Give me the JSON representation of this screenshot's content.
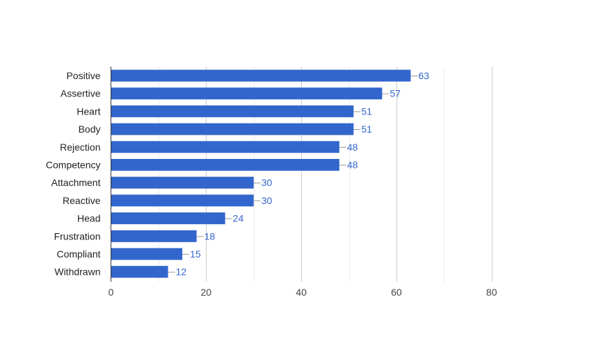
{
  "chart_data": {
    "type": "bar",
    "orientation": "horizontal",
    "title": "",
    "xlabel": "",
    "ylabel": "",
    "categories": [
      "Positive",
      "Assertive",
      "Heart",
      "Body",
      "Rejection",
      "Competency",
      "Attachment",
      "Reactive",
      "Head",
      "Frustration",
      "Compliant",
      "Withdrawn"
    ],
    "values": [
      63,
      57,
      51,
      51,
      48,
      48,
      30,
      30,
      24,
      18,
      15,
      12
    ],
    "xlim": [
      0,
      80
    ],
    "major_ticks": [
      0,
      20,
      40,
      60,
      80
    ],
    "minor_gridlines": [
      10,
      30,
      50,
      70
    ],
    "grid": true,
    "data_labels": true,
    "legend": "none",
    "colors": {
      "bar": "#3366cc",
      "bar_label": "#3366cc",
      "major_grid": "#cccccc",
      "minor_grid": "#ebebeb",
      "axis": "#333333"
    }
  }
}
